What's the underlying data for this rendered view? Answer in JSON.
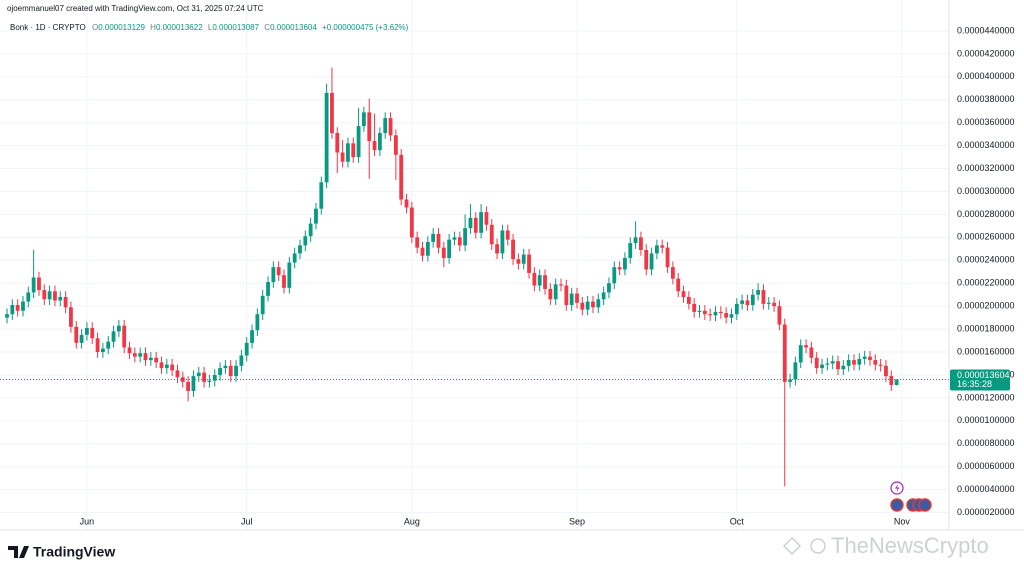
{
  "header": {
    "attribution": "ojoemmanuel07 created with TradingView.com, Oct 31, 2025 07:24 UTC",
    "symbol": "Bonk · 1D · CRYPTO",
    "ohlc": [
      {
        "key": "O",
        "value": "0.000013129"
      },
      {
        "key": "H",
        "value": "0.000013622"
      },
      {
        "key": "L",
        "value": "0.000013087"
      },
      {
        "key": "C",
        "value": "0.000013604"
      }
    ],
    "change": "+0.000000475 (+3.62%)"
  },
  "footer": {
    "brand": "TradingView",
    "watermark": "TheNewsCrypto"
  },
  "chart_data": {
    "type": "candlestick",
    "up_color": "#089981",
    "down_color": "#f23645",
    "grid": true,
    "last_price_label": "0.000013604",
    "countdown": "16:35:28",
    "ylim": [
      4.8e-07,
      4.67e-05
    ],
    "yticks": [
      {
        "value": 2e-06,
        "label": "0.0000020000"
      },
      {
        "value": 4e-06,
        "label": "0.0000040000"
      },
      {
        "value": 6e-06,
        "label": "0.0000060000"
      },
      {
        "value": 8e-06,
        "label": "0.0000080000"
      },
      {
        "value": 1e-05,
        "label": "0.0000100000"
      },
      {
        "value": 1.2e-05,
        "label": "0.0000120000"
      },
      {
        "value": 1.4e-05,
        "label": "0.0000140000"
      },
      {
        "value": 1.6e-05,
        "label": "0.0000160000"
      },
      {
        "value": 1.8e-05,
        "label": "0.0000180000"
      },
      {
        "value": 2e-05,
        "label": "0.0000200000"
      },
      {
        "value": 2.2e-05,
        "label": "0.0000220000"
      },
      {
        "value": 2.4e-05,
        "label": "0.0000240000"
      },
      {
        "value": 2.6e-05,
        "label": "0.0000260000"
      },
      {
        "value": 2.8e-05,
        "label": "0.0000280000"
      },
      {
        "value": 3e-05,
        "label": "0.0000300000"
      },
      {
        "value": 3.2e-05,
        "label": "0.0000320000"
      },
      {
        "value": 3.4e-05,
        "label": "0.0000340000"
      },
      {
        "value": 3.6e-05,
        "label": "0.0000360000"
      },
      {
        "value": 3.8e-05,
        "label": "0.0000380000"
      },
      {
        "value": 4e-05,
        "label": "0.0000400000"
      },
      {
        "value": 4.2e-05,
        "label": "0.0000420000"
      },
      {
        "value": 4.4e-05,
        "label": "0.0000440000"
      }
    ],
    "xticks": [
      {
        "value": 15,
        "label": "Jun"
      },
      {
        "value": 45,
        "label": "Jul"
      },
      {
        "value": 76,
        "label": "Aug"
      },
      {
        "value": 107,
        "label": "Sep"
      },
      {
        "value": 137,
        "label": "Oct"
      },
      {
        "value": 168,
        "label": "Nov"
      }
    ],
    "open": [
      1.9e-05,
      1.93e-05,
      2.01e-05,
      1.96e-05,
      2.04e-05,
      2.12e-05,
      2.25e-05,
      2.14e-05,
      2.06e-05,
      2.13e-05,
      2.05e-05,
      2.08e-05,
      1.99e-05,
      1.82e-05,
      1.68e-05,
      1.75e-05,
      1.81e-05,
      1.72e-05,
      1.6e-05,
      1.63e-05,
      1.69e-05,
      1.78e-05,
      1.83e-05,
      1.64e-05,
      1.59e-05,
      1.56e-05,
      1.59e-05,
      1.53e-05,
      1.55e-05,
      1.51e-05,
      1.46e-05,
      1.49e-05,
      1.44e-05,
      1.38e-05,
      1.34e-05,
      1.26e-05,
      1.39e-05,
      1.42e-05,
      1.34e-05,
      1.35e-05,
      1.4e-05,
      1.46e-05,
      1.48e-05,
      1.39e-05,
      1.48e-05,
      1.57e-05,
      1.68e-05,
      1.79e-05,
      1.93e-05,
      2.09e-05,
      2.21e-05,
      2.34e-05,
      2.27e-05,
      2.16e-05,
      2.38e-05,
      2.46e-05,
      2.53e-05,
      2.61e-05,
      2.72e-05,
      2.85e-05,
      3.08e-05,
      3.86e-05,
      3.51e-05,
      3.34e-05,
      3.26e-05,
      3.42e-05,
      3.3e-05,
      3.57e-05,
      3.69e-05,
      3.44e-05,
      3.36e-05,
      3.51e-05,
      3.64e-05,
      3.49e-05,
      3.32e-05,
      2.93e-05,
      2.86e-05,
      2.6e-05,
      2.51e-05,
      2.44e-05,
      2.56e-05,
      2.63e-05,
      2.51e-05,
      2.42e-05,
      2.58e-05,
      2.6e-05,
      2.53e-05,
      2.68e-05,
      2.77e-05,
      2.64e-05,
      2.82e-05,
      2.71e-05,
      2.54e-05,
      2.46e-05,
      2.66e-05,
      2.58e-05,
      2.41e-05,
      2.37e-05,
      2.45e-05,
      2.29e-05,
      2.18e-05,
      2.27e-05,
      2.15e-05,
      2.06e-05,
      2.19e-05,
      2.18e-05,
      2.01e-05,
      2.11e-05,
      2.03e-05,
      1.97e-05,
      2.04e-05,
      1.99e-05,
      2.06e-05,
      2.12e-05,
      2.2e-05,
      2.34e-05,
      2.32e-05,
      2.42e-05,
      2.55e-05,
      2.6e-05,
      2.49e-05,
      2.32e-05,
      2.46e-05,
      2.53e-05,
      2.51e-05,
      2.34e-05,
      2.24e-05,
      2.13e-05,
      2.08e-05,
      2.02e-05,
      1.95e-05,
      1.96e-05,
      1.93e-05,
      1.92e-05,
      1.95e-05,
      1.94e-05,
      1.9e-05,
      1.93e-05,
      2.02e-05,
      2.05e-05,
      2.01e-05,
      2.1e-05,
      2.14e-05,
      2.02e-05,
      2.03e-05,
      2e-05,
      1.84e-05,
      1.34e-05,
      1.36e-05,
      1.51e-05,
      1.66e-05,
      1.64e-05,
      1.55e-05,
      1.46e-05,
      1.49e-05,
      1.5e-05,
      1.52e-05,
      1.45e-05,
      1.48e-05,
      1.53e-05,
      1.49e-05,
      1.54e-05,
      1.56e-05,
      1.53e-05,
      1.49e-05,
      1.48e-05,
      1.39e-05,
      1.3129e-05
    ],
    "high": [
      1.98e-05,
      2.06e-05,
      2.06e-05,
      2.09e-05,
      2.17e-05,
      2.49e-05,
      2.3e-05,
      2.19e-05,
      2.18e-05,
      2.18e-05,
      2.13e-05,
      2.13e-05,
      2.04e-05,
      1.87e-05,
      1.8e-05,
      1.86e-05,
      1.86e-05,
      1.77e-05,
      1.68e-05,
      1.74e-05,
      1.83e-05,
      1.88e-05,
      1.88e-05,
      1.69e-05,
      1.64e-05,
      1.64e-05,
      1.64e-05,
      1.6e-05,
      1.6e-05,
      1.56e-05,
      1.54e-05,
      1.54e-05,
      1.49e-05,
      1.43e-05,
      1.39e-05,
      1.44e-05,
      1.47e-05,
      1.47e-05,
      1.4e-05,
      1.45e-05,
      1.51e-05,
      1.53e-05,
      1.53e-05,
      1.53e-05,
      1.62e-05,
      1.73e-05,
      1.84e-05,
      1.98e-05,
      2.14e-05,
      2.26e-05,
      2.39e-05,
      2.39e-05,
      2.32e-05,
      2.43e-05,
      2.51e-05,
      2.58e-05,
      2.66e-05,
      2.77e-05,
      2.9e-05,
      3.13e-05,
      3.94e-05,
      4.08e-05,
      3.56e-05,
      3.45e-05,
      3.47e-05,
      3.47e-05,
      3.73e-05,
      3.74e-05,
      3.81e-05,
      3.68e-05,
      3.56e-05,
      3.69e-05,
      3.69e-05,
      3.54e-05,
      3.37e-05,
      2.98e-05,
      2.91e-05,
      2.65e-05,
      2.56e-05,
      2.61e-05,
      2.68e-05,
      2.68e-05,
      2.56e-05,
      2.63e-05,
      2.65e-05,
      2.65e-05,
      2.8e-05,
      2.89e-05,
      2.82e-05,
      2.89e-05,
      2.87e-05,
      2.76e-05,
      2.59e-05,
      2.71e-05,
      2.71e-05,
      2.63e-05,
      2.46e-05,
      2.5e-05,
      2.5e-05,
      2.34e-05,
      2.32e-05,
      2.32e-05,
      2.2e-05,
      2.24e-05,
      2.24e-05,
      2.23e-05,
      2.16e-05,
      2.16e-05,
      2.08e-05,
      2.09e-05,
      2.09e-05,
      2.11e-05,
      2.17e-05,
      2.25e-05,
      2.39e-05,
      2.39e-05,
      2.47e-05,
      2.6e-05,
      2.74e-05,
      2.65e-05,
      2.54e-05,
      2.51e-05,
      2.58e-05,
      2.58e-05,
      2.56e-05,
      2.39e-05,
      2.29e-05,
      2.18e-05,
      2.13e-05,
      2.07e-05,
      2.01e-05,
      2.01e-05,
      1.98e-05,
      2e-05,
      2e-05,
      1.99e-05,
      1.98e-05,
      2.07e-05,
      2.1e-05,
      2.1e-05,
      2.15e-05,
      2.2e-05,
      2.19e-05,
      2.08e-05,
      2.08e-05,
      2.05e-05,
      1.89e-05,
      1.41e-05,
      1.56e-05,
      1.71e-05,
      1.71e-05,
      1.69e-05,
      1.6e-05,
      1.54e-05,
      1.55e-05,
      1.57e-05,
      1.57e-05,
      1.53e-05,
      1.58e-05,
      1.58e-05,
      1.59e-05,
      1.61e-05,
      1.61e-05,
      1.58e-05,
      1.54e-05,
      1.53e-05,
      1.44e-05,
      1.3622e-05
    ],
    "low": [
      1.85e-05,
      1.88e-05,
      1.91e-05,
      1.91e-05,
      1.99e-05,
      2.07e-05,
      2.09e-05,
      2.01e-05,
      2.01e-05,
      2e-05,
      2e-05,
      1.94e-05,
      1.77e-05,
      1.63e-05,
      1.63e-05,
      1.7e-05,
      1.67e-05,
      1.55e-05,
      1.55e-05,
      1.58e-05,
      1.64e-05,
      1.73e-05,
      1.59e-05,
      1.54e-05,
      1.51e-05,
      1.51e-05,
      1.48e-05,
      1.48e-05,
      1.46e-05,
      1.41e-05,
      1.41e-05,
      1.39e-05,
      1.33e-05,
      1.29e-05,
      1.17e-05,
      1.21e-05,
      1.34e-05,
      1.29e-05,
      1.29e-05,
      1.3e-05,
      1.35e-05,
      1.41e-05,
      1.34e-05,
      1.34e-05,
      1.43e-05,
      1.52e-05,
      1.63e-05,
      1.74e-05,
      1.88e-05,
      2.04e-05,
      2.16e-05,
      2.22e-05,
      2.11e-05,
      2.11e-05,
      2.33e-05,
      2.41e-05,
      2.48e-05,
      2.56e-05,
      2.67e-05,
      2.8e-05,
      3.03e-05,
      3.46e-05,
      3.16e-05,
      3.21e-05,
      3.21e-05,
      3.25e-05,
      3.25e-05,
      3.52e-05,
      3.11e-05,
      3.31e-05,
      3.31e-05,
      3.46e-05,
      3.44e-05,
      3.1e-05,
      2.88e-05,
      2.81e-05,
      2.55e-05,
      2.46e-05,
      2.39e-05,
      2.39e-05,
      2.51e-05,
      2.46e-05,
      2.34e-05,
      2.37e-05,
      2.53e-05,
      2.48e-05,
      2.48e-05,
      2.63e-05,
      2.59e-05,
      2.59e-05,
      2.66e-05,
      2.49e-05,
      2.41e-05,
      2.41e-05,
      2.53e-05,
      2.36e-05,
      2.32e-05,
      2.32e-05,
      2.24e-05,
      2.13e-05,
      2.13e-05,
      2.1e-05,
      2.01e-05,
      2.01e-05,
      2.13e-05,
      1.96e-05,
      1.96e-05,
      1.98e-05,
      1.92e-05,
      1.92e-05,
      1.94e-05,
      1.94e-05,
      2.01e-05,
      2.07e-05,
      2.15e-05,
      2.27e-05,
      2.27e-05,
      2.37e-05,
      2.5e-05,
      2.44e-05,
      2.27e-05,
      2.27e-05,
      2.41e-05,
      2.46e-05,
      2.29e-05,
      2.19e-05,
      2.08e-05,
      2.03e-05,
      1.97e-05,
      1.9e-05,
      1.9e-05,
      1.88e-05,
      1.87e-05,
      1.87e-05,
      1.89e-05,
      1.85e-05,
      1.85e-05,
      1.88e-05,
      1.97e-05,
      1.96e-05,
      1.96e-05,
      2.05e-05,
      1.97e-05,
      1.97e-05,
      1.95e-05,
      1.79e-05,
      4.3e-06,
      1.29e-05,
      1.31e-05,
      1.46e-05,
      1.59e-05,
      1.5e-05,
      1.41e-05,
      1.41e-05,
      1.44e-05,
      1.45e-05,
      1.4e-05,
      1.4e-05,
      1.43e-05,
      1.44e-05,
      1.44e-05,
      1.49e-05,
      1.48e-05,
      1.44e-05,
      1.43e-05,
      1.34e-05,
      1.26e-05,
      1.3087e-05
    ],
    "close": [
      1.93e-05,
      2.01e-05,
      1.96e-05,
      2.04e-05,
      2.12e-05,
      2.25e-05,
      2.14e-05,
      2.06e-05,
      2.13e-05,
      2.05e-05,
      2.08e-05,
      1.99e-05,
      1.82e-05,
      1.68e-05,
      1.75e-05,
      1.81e-05,
      1.72e-05,
      1.6e-05,
      1.63e-05,
      1.69e-05,
      1.78e-05,
      1.83e-05,
      1.64e-05,
      1.59e-05,
      1.56e-05,
      1.59e-05,
      1.53e-05,
      1.55e-05,
      1.51e-05,
      1.46e-05,
      1.49e-05,
      1.44e-05,
      1.38e-05,
      1.34e-05,
      1.26e-05,
      1.39e-05,
      1.42e-05,
      1.34e-05,
      1.35e-05,
      1.4e-05,
      1.46e-05,
      1.48e-05,
      1.39e-05,
      1.48e-05,
      1.57e-05,
      1.68e-05,
      1.79e-05,
      1.93e-05,
      2.09e-05,
      2.21e-05,
      2.34e-05,
      2.27e-05,
      2.16e-05,
      2.38e-05,
      2.46e-05,
      2.53e-05,
      2.61e-05,
      2.72e-05,
      2.85e-05,
      3.08e-05,
      3.86e-05,
      3.51e-05,
      3.34e-05,
      3.26e-05,
      3.42e-05,
      3.3e-05,
      3.57e-05,
      3.69e-05,
      3.44e-05,
      3.36e-05,
      3.51e-05,
      3.64e-05,
      3.49e-05,
      3.32e-05,
      2.93e-05,
      2.86e-05,
      2.6e-05,
      2.51e-05,
      2.44e-05,
      2.56e-05,
      2.63e-05,
      2.51e-05,
      2.42e-05,
      2.58e-05,
      2.6e-05,
      2.53e-05,
      2.68e-05,
      2.77e-05,
      2.64e-05,
      2.82e-05,
      2.71e-05,
      2.54e-05,
      2.46e-05,
      2.66e-05,
      2.58e-05,
      2.41e-05,
      2.37e-05,
      2.45e-05,
      2.29e-05,
      2.18e-05,
      2.27e-05,
      2.15e-05,
      2.06e-05,
      2.19e-05,
      2.18e-05,
      2.01e-05,
      2.11e-05,
      2.03e-05,
      1.97e-05,
      2.04e-05,
      1.99e-05,
      2.06e-05,
      2.12e-05,
      2.2e-05,
      2.34e-05,
      2.32e-05,
      2.42e-05,
      2.55e-05,
      2.6e-05,
      2.49e-05,
      2.32e-05,
      2.46e-05,
      2.53e-05,
      2.51e-05,
      2.34e-05,
      2.24e-05,
      2.13e-05,
      2.08e-05,
      2.02e-05,
      1.95e-05,
      1.96e-05,
      1.93e-05,
      1.92e-05,
      1.95e-05,
      1.94e-05,
      1.9e-05,
      1.93e-05,
      2.02e-05,
      2.05e-05,
      2.01e-05,
      2.1e-05,
      2.14e-05,
      2.02e-05,
      2.03e-05,
      2e-05,
      1.84e-05,
      1.34e-05,
      1.36e-05,
      1.51e-05,
      1.66e-05,
      1.64e-05,
      1.55e-05,
      1.46e-05,
      1.49e-05,
      1.5e-05,
      1.52e-05,
      1.45e-05,
      1.48e-05,
      1.53e-05,
      1.49e-05,
      1.54e-05,
      1.56e-05,
      1.53e-05,
      1.49e-05,
      1.48e-05,
      1.39e-05,
      1.3129e-05,
      1.3604e-05
    ]
  }
}
